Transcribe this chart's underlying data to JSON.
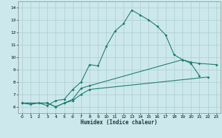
{
  "xlabel": "Humidex (Indice chaleur)",
  "bg_color": "#cce8ec",
  "grid_color": "#aacccc",
  "line_color": "#1a7a6e",
  "xlim": [
    -0.5,
    23.5
  ],
  "ylim": [
    5.5,
    14.5
  ],
  "xticks": [
    0,
    1,
    2,
    3,
    4,
    5,
    6,
    7,
    8,
    9,
    10,
    11,
    12,
    13,
    14,
    15,
    16,
    17,
    18,
    19,
    20,
    21,
    22,
    23
  ],
  "yticks": [
    6,
    7,
    8,
    9,
    10,
    11,
    12,
    13,
    14
  ],
  "line1_x": [
    0,
    1,
    2,
    3,
    4,
    5,
    6,
    7,
    8,
    9,
    10,
    11,
    12,
    13,
    14,
    15,
    16,
    17,
    18,
    19,
    20,
    21
  ],
  "line1_y": [
    6.3,
    6.2,
    6.3,
    6.1,
    6.5,
    6.6,
    7.4,
    8.0,
    9.4,
    9.3,
    10.9,
    12.1,
    12.7,
    13.8,
    13.4,
    13.0,
    12.5,
    11.8,
    10.2,
    9.8,
    9.5,
    8.5
  ],
  "line2_x": [
    0,
    3,
    4,
    5,
    6,
    7,
    8,
    19,
    20,
    21,
    23
  ],
  "line2_y": [
    6.3,
    6.3,
    6.0,
    6.3,
    6.6,
    7.5,
    7.7,
    9.8,
    9.6,
    9.5,
    9.4
  ],
  "line3_x": [
    0,
    3,
    4,
    5,
    6,
    7,
    8,
    22
  ],
  "line3_y": [
    6.3,
    6.3,
    6.0,
    6.3,
    6.5,
    7.0,
    7.4,
    8.4
  ]
}
